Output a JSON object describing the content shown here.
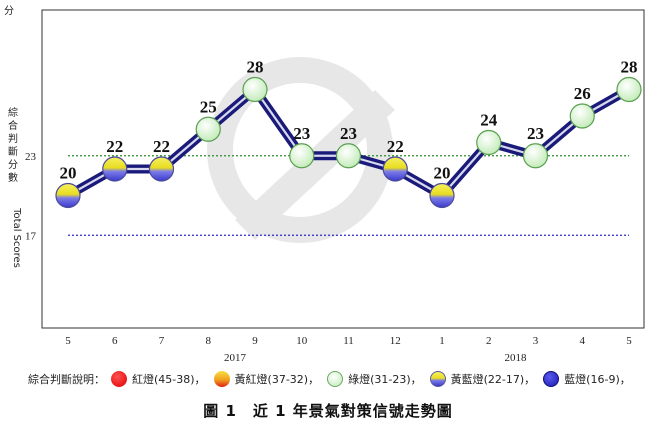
{
  "chart_data": {
    "type": "line",
    "y_unit": "分",
    "ylabel_zh": [
      "綜",
      "合",
      "判",
      "斷",
      "分",
      "數"
    ],
    "ylabel_en": "Total Scores",
    "ylim": [
      10,
      34
    ],
    "y_ticks": [
      {
        "value": 23,
        "label": "23"
      },
      {
        "value": 17,
        "label": "17"
      }
    ],
    "categories": [
      "5",
      "6",
      "7",
      "8",
      "9",
      "10",
      "11",
      "12",
      "1",
      "2",
      "3",
      "4",
      "5"
    ],
    "years": [
      {
        "label": "2017",
        "index": 4
      },
      {
        "label": "2018",
        "index": 10
      }
    ],
    "values": [
      20,
      22,
      22,
      25,
      28,
      23,
      23,
      22,
      20,
      24,
      23,
      26,
      28
    ],
    "signals": [
      "yellow-blue",
      "yellow-blue",
      "yellow-blue",
      "green",
      "green",
      "green",
      "green",
      "yellow-blue",
      "yellow-blue",
      "green",
      "green",
      "green",
      "green"
    ],
    "reference_lines": [
      {
        "value": 23,
        "color": "#2e8b2e",
        "style": "dotted"
      },
      {
        "value": 17,
        "color": "#2b2bd0",
        "style": "dotted"
      }
    ],
    "line_color": "#1a1a7a",
    "grid": false
  },
  "legend": {
    "title": "綜合判斷說明：",
    "items": [
      {
        "key": "red",
        "label": "紅燈(45-38)，"
      },
      {
        "key": "yellow-red",
        "label": "黃紅燈(37-32)，"
      },
      {
        "key": "green",
        "label": "綠燈(31-23)，"
      },
      {
        "key": "yellow-blue",
        "label": "黃藍燈(22-17)，"
      },
      {
        "key": "blue",
        "label": "藍燈(16-9)，"
      }
    ]
  },
  "colors": {
    "green": "#d8f5d0",
    "yellow_blue_top": "#f4ec2a",
    "yellow_blue_bottom": "#4a4ad8",
    "red": "#ee1111",
    "blue": "#2020c0"
  },
  "caption": "圖 1　近 1 年景氣對策信號走勢圖"
}
